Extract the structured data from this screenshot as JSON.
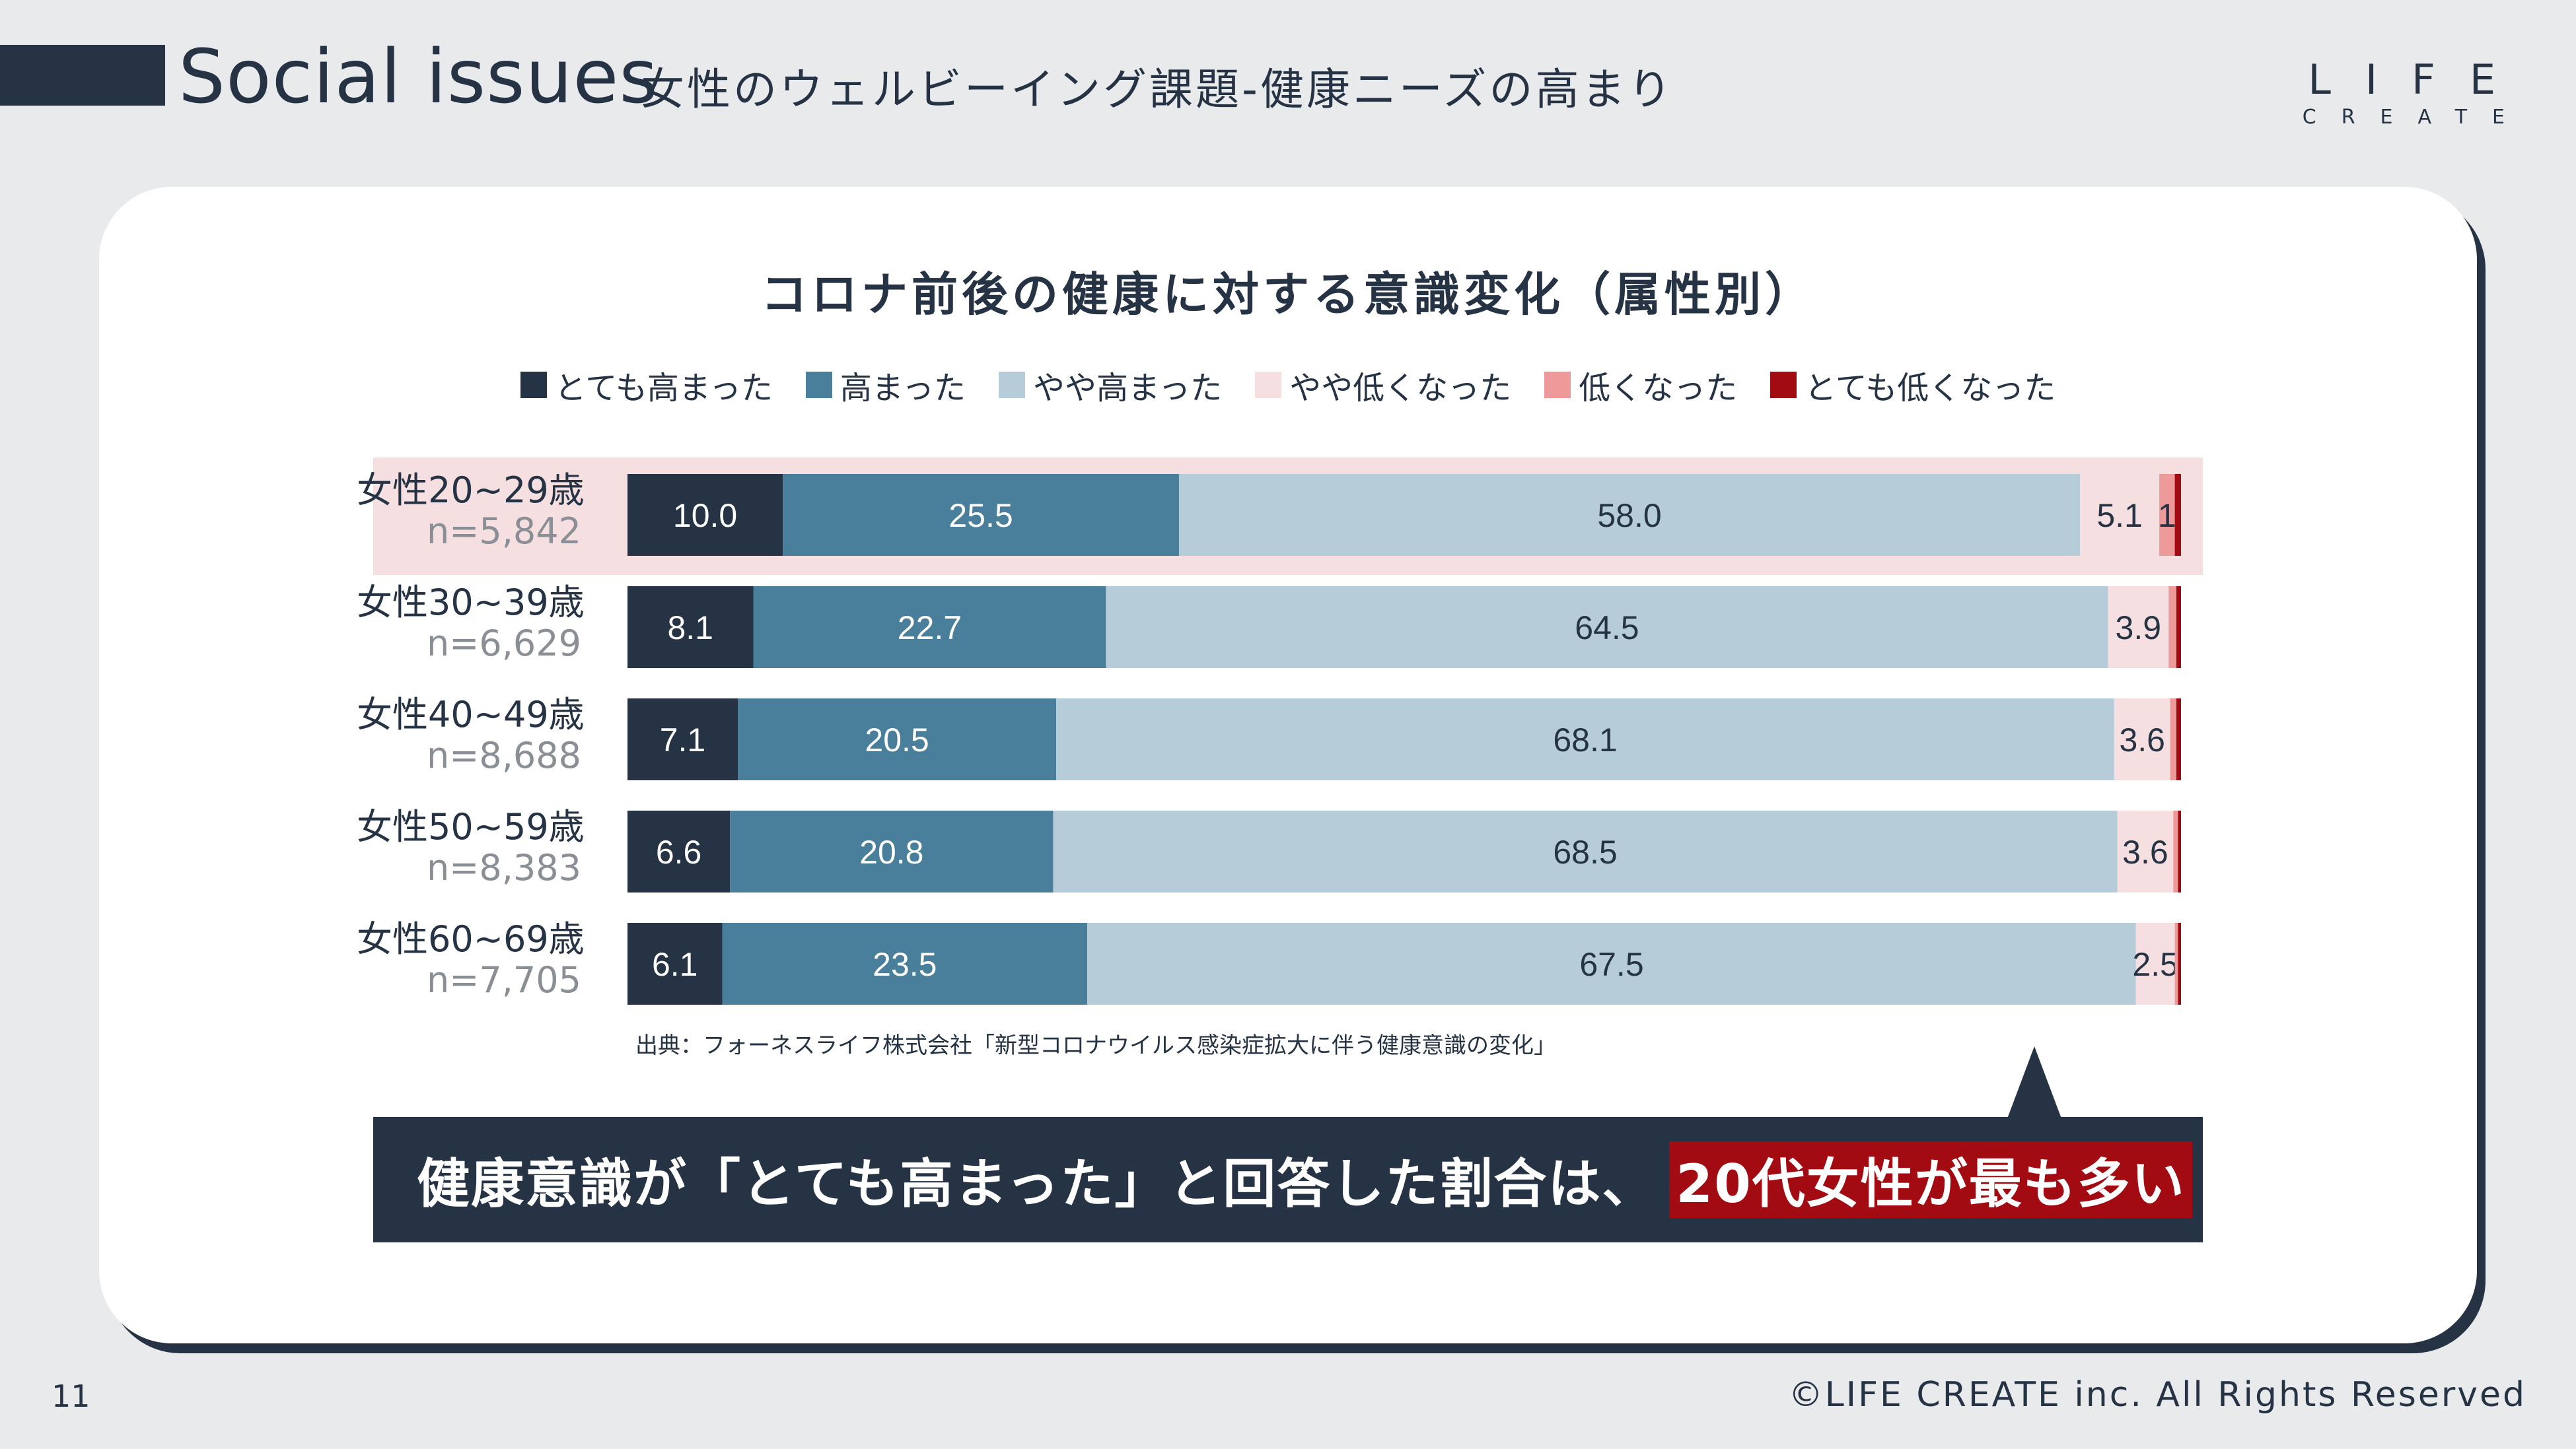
{
  "header": {
    "title": "Social issues",
    "subtitle": "女性のウェルビーイング課題-健康ニーズの高まり",
    "logo_top": "LIFE",
    "logo_bottom": "CREATE"
  },
  "colors": {
    "navy": "#253344",
    "highlight_red": "#a30b12",
    "row_highlight": "#f6dfe1"
  },
  "chart_data": {
    "type": "bar",
    "orientation": "horizontal-stacked-100",
    "title": "コロナ前後の健康に対する意識変化（属性別）",
    "series": [
      {
        "name": "とても高まった",
        "color": "#253344",
        "label_color": "#ffffff",
        "values": [
          10.0,
          8.1,
          7.1,
          6.6,
          6.1
        ]
      },
      {
        "name": "高まった",
        "color": "#4a7f9c",
        "label_color": "#ffffff",
        "values": [
          25.5,
          22.7,
          20.5,
          20.8,
          23.5
        ]
      },
      {
        "name": "やや高まった",
        "color": "#b6ccd8",
        "label_color": "#253344",
        "values": [
          58.0,
          64.5,
          68.1,
          68.5,
          67.5
        ]
      },
      {
        "name": "やや低くなった",
        "color": "#f6dfe1",
        "label_color": "#253344",
        "values": [
          5.1,
          3.9,
          3.6,
          3.6,
          2.5
        ]
      },
      {
        "name": "低くなった",
        "color": "#ef9a9a",
        "label_color": "#253344",
        "values": [
          1.0,
          0.5,
          0.4,
          0.3,
          0.2
        ]
      },
      {
        "name": "とても低くなった",
        "color": "#a30b12",
        "label_color": "#ffffff",
        "values": [
          0.4,
          0.3,
          0.3,
          0.2,
          0.2
        ]
      }
    ],
    "data_labels": [
      [
        "10.0",
        "25.5",
        "58.0",
        "5.1",
        "1",
        ""
      ],
      [
        "8.1",
        "22.7",
        "64.5",
        "3.9",
        "",
        ""
      ],
      [
        "7.1",
        "20.5",
        "68.1",
        "3.6",
        "",
        ""
      ],
      [
        "6.6",
        "20.8",
        "68.5",
        "3.6",
        "",
        ""
      ],
      [
        "6.1",
        "23.5",
        "67.5",
        "2.5",
        "",
        ""
      ]
    ],
    "categories": [
      {
        "name": "女性20~29歳",
        "n": "n=5,842"
      },
      {
        "name": "女性30~39歳",
        "n": "n=6,629"
      },
      {
        "name": "女性40~49歳",
        "n": "n=8,688"
      },
      {
        "name": "女性50~59歳",
        "n": "n=8,383"
      },
      {
        "name": "女性60~69歳",
        "n": "n=7,705"
      }
    ],
    "highlighted_category": "女性20~29歳",
    "source": "出典：フォーネスライフ株式会社「新型コロナウイルス感染症拡大に伴う健康意識の変化」"
  },
  "callout": {
    "text": "健康意識が「とても高まった」と回答した割合は、",
    "highlight": "20代女性が最も多い"
  },
  "footer": {
    "page_number": "11",
    "copyright": "©LIFE CREATE inc. All Rights Reserved"
  }
}
